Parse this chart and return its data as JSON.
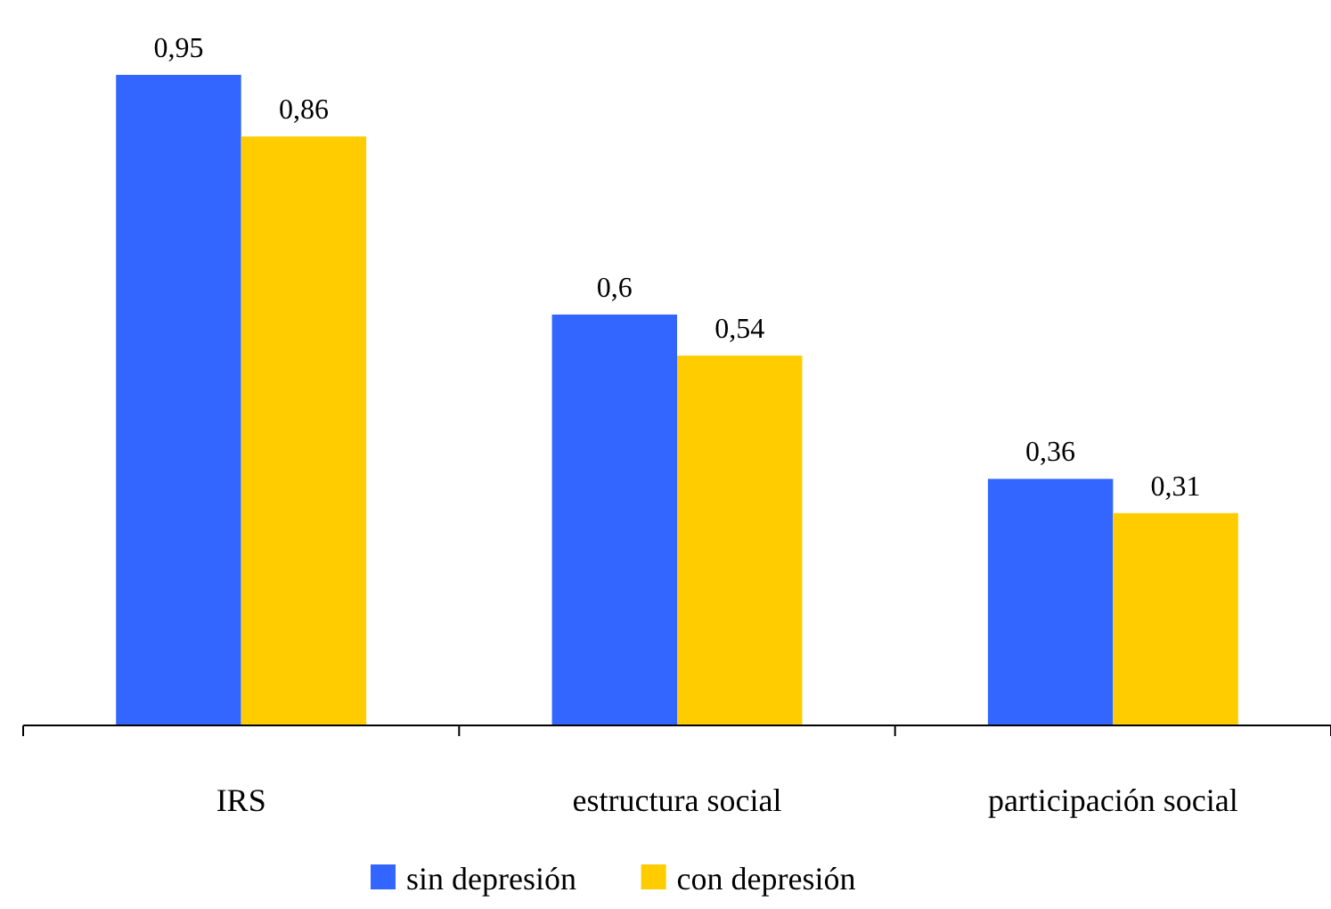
{
  "chart_data": {
    "type": "bar",
    "categories": [
      "IRS",
      "estructura social",
      "participación social"
    ],
    "series": [
      {
        "name": "sin depresión",
        "color": "#3366ff",
        "values": [
          0.95,
          0.6,
          0.36
        ],
        "value_labels": [
          "0,95",
          "0,6",
          "0,36"
        ]
      },
      {
        "name": "con depresión",
        "color": "#ffcc00",
        "values": [
          0.86,
          0.54,
          0.31
        ],
        "value_labels": [
          "0,86",
          "0,54",
          "0,31"
        ]
      }
    ],
    "legend": "bottom"
  }
}
